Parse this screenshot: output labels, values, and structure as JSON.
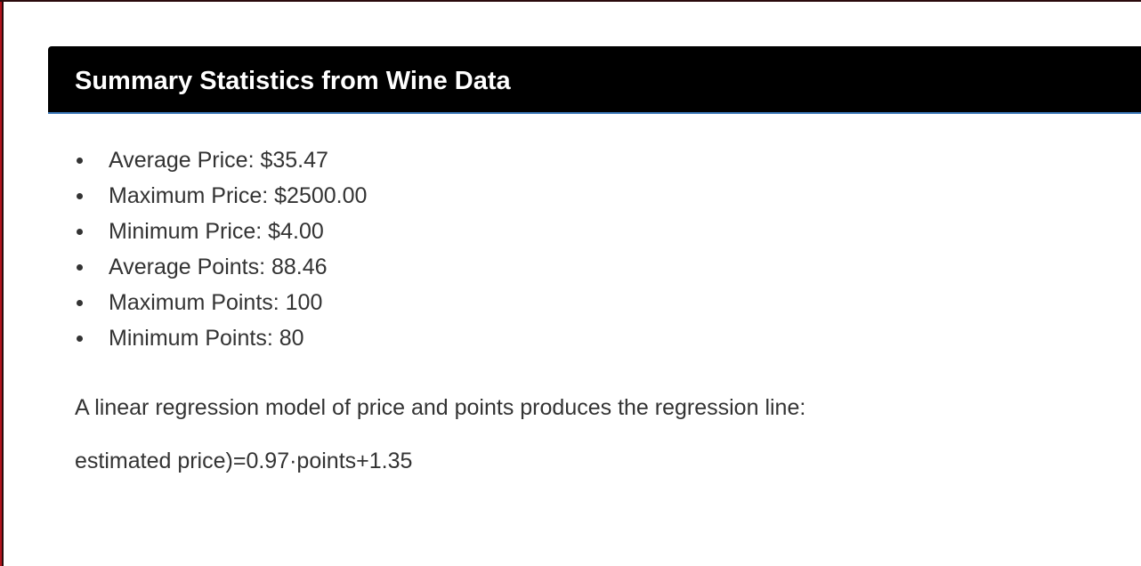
{
  "panel": {
    "title": "Summary Statistics from Wine Data"
  },
  "stats": [
    {
      "text": "Average Price: $35.47"
    },
    {
      "text": "Maximum Price: $2500.00"
    },
    {
      "text": "Minimum Price: $4.00"
    },
    {
      "text": "Average Points: 88.46"
    },
    {
      "text": "Maximum Points: 100"
    },
    {
      "text": "Minimum Points: 80"
    }
  ],
  "regression": {
    "description": "A linear regression model of price and points produces the regression line:",
    "formula": "estimated price)=0.97·points+1.35"
  },
  "colors": {
    "header_background": "#000000",
    "header_text": "#ffffff",
    "header_border": "#3a78b8",
    "body_text": "#333333",
    "frame_accent": "#b3121c"
  }
}
